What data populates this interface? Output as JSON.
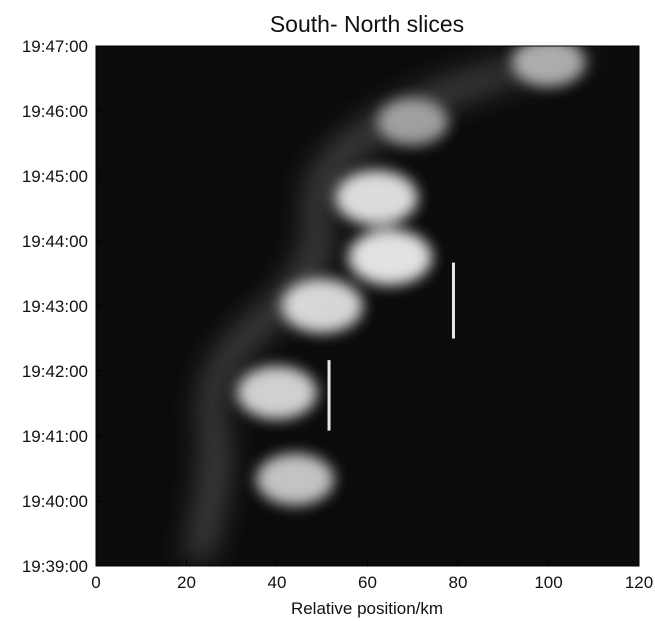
{
  "chart_data": {
    "type": "heatmap",
    "title": "South- North slices",
    "xlabel": "Relative position/km",
    "ylabel": "",
    "xlim": [
      0,
      120
    ],
    "ylim": [
      "19:39:00",
      "19:47:00"
    ],
    "x_ticks": [
      "0",
      "20",
      "40",
      "60",
      "80",
      "100",
      "120"
    ],
    "y_ticks": [
      "19:39:00",
      "19:40:00",
      "19:41:00",
      "19:42:00",
      "19:43:00",
      "19:44:00",
      "19:45:00",
      "19:46:00",
      "19:47:00"
    ],
    "colormap": "grayscale",
    "background_color": "#0b0b0b",
    "bright_features": [
      {
        "x": 44,
        "time": "19:40:20",
        "intensity": 0.75
      },
      {
        "x": 40,
        "time": "19:41:40",
        "intensity": 0.85
      },
      {
        "x": 50,
        "time": "19:43:00",
        "intensity": 0.9
      },
      {
        "x": 65,
        "time": "19:43:45",
        "intensity": 1.0
      },
      {
        "x": 62,
        "time": "19:44:40",
        "intensity": 0.95
      },
      {
        "x": 70,
        "time": "19:45:50",
        "intensity": 0.45
      },
      {
        "x": 100,
        "time": "19:46:45",
        "intensity": 0.55
      }
    ],
    "markers": [
      {
        "x": 51.5,
        "time_start": "19:41:05",
        "time_end": "19:42:10",
        "color": "#e8e8e8"
      },
      {
        "x": 79,
        "time_start": "19:42:30",
        "time_end": "19:43:40",
        "color": "#e8e8e8"
      }
    ]
  }
}
